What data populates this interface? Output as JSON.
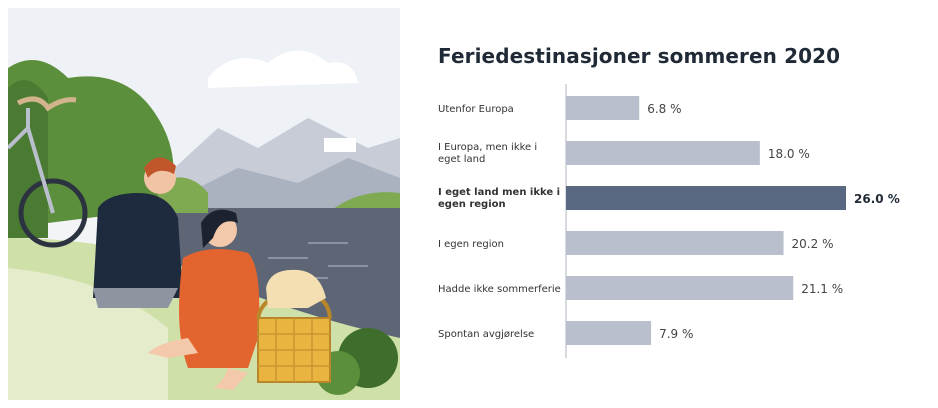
{
  "chart_data": {
    "type": "bar",
    "orientation": "horizontal",
    "title": "Feriedestinasjoner sommeren 2020",
    "categories": [
      [
        "Utenfor Europa"
      ],
      [
        "I Europa, men ikke i",
        "eget land"
      ],
      [
        "I eget land men ikke i",
        "egen region"
      ],
      [
        "I egen region"
      ],
      [
        "Hadde ikke sommerferie"
      ],
      [
        "Spontan avgjørelse"
      ]
    ],
    "values": [
      6.8,
      18.0,
      26.0,
      20.2,
      21.1,
      7.9
    ],
    "value_labels": [
      "6.8 %",
      "18.0 %",
      "26.0 %",
      "20.2 %",
      "21.1 %",
      "7.9 %"
    ],
    "highlight_index": 2,
    "xlim": [
      0,
      26
    ],
    "grid": false,
    "colors": {
      "bar": "#b9bfcc",
      "highlight": "#5b6882",
      "axis": "#b0b5bf",
      "text": "#333333"
    }
  }
}
